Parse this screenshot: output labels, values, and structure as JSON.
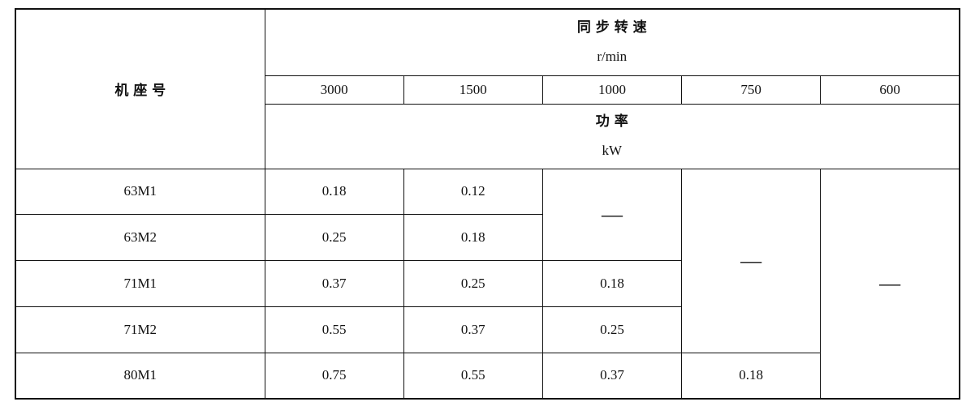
{
  "table": {
    "row_header": "机 座 号",
    "speed_header": "同 步 转 速",
    "speed_unit": "r/min",
    "speeds": [
      3000,
      1500,
      1000,
      750,
      600
    ],
    "power_header": "功 率",
    "power_unit": "kW",
    "rows": [
      [
        "63M1",
        0.18,
        0.12,
        "—",
        "—",
        "—"
      ],
      [
        "63M2",
        0.25,
        0.18
      ],
      [
        "71M1",
        0.37,
        0.25,
        0.18
      ],
      [
        "71M2",
        0.55,
        0.37,
        0.25
      ],
      [
        "80M1",
        0.75,
        0.55,
        0.37,
        0.18
      ]
    ]
  }
}
